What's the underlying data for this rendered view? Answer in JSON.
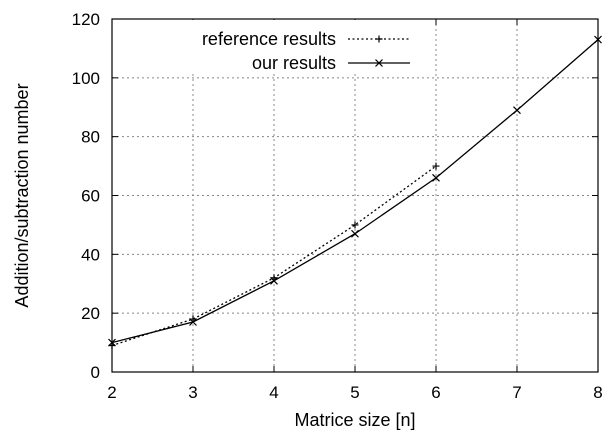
{
  "chart_data": {
    "type": "line",
    "xlabel": "Matrice size [n]",
    "ylabel": "Addition/subtraction number",
    "xlim": [
      2,
      8
    ],
    "ylim": [
      0,
      120
    ],
    "xticks": [
      2,
      3,
      4,
      5,
      6,
      7,
      8
    ],
    "yticks": [
      0,
      20,
      40,
      60,
      80,
      100,
      120
    ],
    "grid": true,
    "legend_position": "top-left",
    "series": [
      {
        "name": "reference results",
        "style": "dotted",
        "marker": "plus",
        "color": "#000000",
        "x": [
          2,
          3,
          4,
          5,
          6
        ],
        "y": [
          9,
          18,
          32,
          50,
          70
        ]
      },
      {
        "name": "our results",
        "style": "solid",
        "marker": "cross",
        "color": "#000000",
        "x": [
          2,
          3,
          4,
          5,
          6,
          7,
          8
        ],
        "y": [
          10,
          17,
          31,
          47,
          66,
          89,
          113
        ]
      }
    ]
  }
}
